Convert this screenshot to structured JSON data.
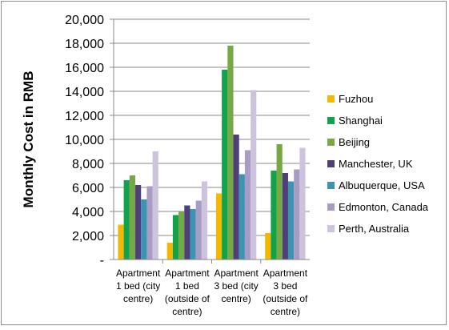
{
  "chart_data": {
    "type": "bar",
    "title": "",
    "xlabel": "",
    "ylabel": "Monthly  Cost in RMB",
    "ylim": [
      0,
      20000
    ],
    "ytick_step": 2000,
    "ytick_labels": [
      "-",
      "2,000",
      "4,000",
      "6,000",
      "8,000",
      "10,000",
      "12,000",
      "14,000",
      "16,000",
      "18,000",
      "20,000"
    ],
    "grid": true,
    "legend_position": "right",
    "categories": [
      [
        "Apartment",
        "1 bed (city",
        "centre)"
      ],
      [
        "Apartment",
        "1 bed",
        "(outside of",
        "centre)"
      ],
      [
        "Apartment",
        "3 bed (city",
        "centre)"
      ],
      [
        "Apartment",
        "3 bed",
        "(outside of",
        "centre)"
      ]
    ],
    "series": [
      {
        "name": "Fuzhou",
        "color": "#f5b800",
        "values": [
          2900,
          1400,
          5500,
          2200
        ]
      },
      {
        "name": "Shanghai",
        "color": "#11a34a",
        "values": [
          6600,
          3700,
          15800,
          7400
        ]
      },
      {
        "name": "Beijing",
        "color": "#78a846",
        "values": [
          7000,
          4000,
          17800,
          9600
        ]
      },
      {
        "name": "Manchester, UK",
        "color": "#4f3f79",
        "values": [
          6200,
          4500,
          10400,
          7200
        ]
      },
      {
        "name": "Albuquerque, USA",
        "color": "#3c95b0",
        "values": [
          5000,
          4200,
          7100,
          6500
        ]
      },
      {
        "name": "Edmonton, Canada",
        "color": "#a99cc4",
        "values": [
          6100,
          4900,
          9100,
          7500
        ]
      },
      {
        "name": "Perth, Australia",
        "color": "#cdc3df",
        "values": [
          9000,
          6500,
          14100,
          9300
        ]
      }
    ]
  }
}
